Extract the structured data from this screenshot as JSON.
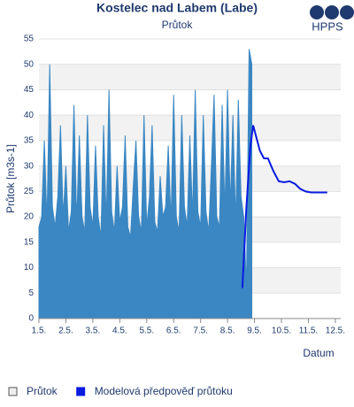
{
  "logo": "HPPS",
  "chart_data": {
    "type": "area-line",
    "title": "Kostelec nad Labem (Labe)",
    "subtitle": "Průtok",
    "y_label": "Průtok [m3s-1]",
    "x_label": "Datum",
    "xlim": [
      1,
      12.2
    ],
    "ylim": [
      0,
      55
    ],
    "xticks": [
      {
        "value": 1,
        "label": "1.5."
      },
      {
        "value": 2,
        "label": "2.5."
      },
      {
        "value": 3,
        "label": "3.5."
      },
      {
        "value": 4,
        "label": "4.5."
      },
      {
        "value": 5,
        "label": "5.5."
      },
      {
        "value": 6,
        "label": "6.5."
      },
      {
        "value": 7,
        "label": "7.5."
      },
      {
        "value": 8,
        "label": "8.5."
      },
      {
        "value": 9,
        "label": "9.5."
      },
      {
        "value": 10,
        "label": "10.5."
      },
      {
        "value": 11,
        "label": "11.5."
      },
      {
        "value": 12,
        "label": "12.5."
      }
    ],
    "yticks": [
      0,
      5,
      10,
      15,
      20,
      25,
      30,
      35,
      40,
      45,
      50,
      55
    ],
    "grid": "bands",
    "legend": "bottom-left",
    "series": [
      {
        "name": "Průtok",
        "kind": "area",
        "color": "#3a87c3",
        "x": [
          1.0,
          1.1,
          1.2,
          1.3,
          1.4,
          1.5,
          1.6,
          1.7,
          1.8,
          1.9,
          2.0,
          2.1,
          2.2,
          2.3,
          2.4,
          2.5,
          2.6,
          2.7,
          2.8,
          2.9,
          3.0,
          3.1,
          3.2,
          3.3,
          3.4,
          3.5,
          3.6,
          3.7,
          3.8,
          3.9,
          4.0,
          4.1,
          4.2,
          4.3,
          4.4,
          4.5,
          4.6,
          4.7,
          4.8,
          4.9,
          5.0,
          5.1,
          5.2,
          5.3,
          5.4,
          5.5,
          5.6,
          5.7,
          5.8,
          5.9,
          6.0,
          6.1,
          6.2,
          6.3,
          6.4,
          6.5,
          6.6,
          6.7,
          6.8,
          6.9,
          7.0,
          7.1,
          7.2,
          7.3,
          7.4,
          7.5,
          7.6,
          7.7,
          7.8,
          7.9,
          8.0,
          8.1,
          8.2,
          8.3,
          8.4,
          8.5,
          8.6,
          8.7,
          8.8,
          8.9
        ],
        "values": [
          18,
          20,
          35,
          19,
          50,
          22,
          18,
          24,
          38,
          20,
          30,
          17,
          21,
          42,
          19,
          36,
          20,
          17,
          40,
          22,
          18,
          34,
          20,
          16,
          38,
          19,
          45,
          21,
          17,
          30,
          19,
          22,
          36,
          18,
          16,
          26,
          35,
          20,
          17,
          40,
          18,
          24,
          38,
          19,
          17,
          28,
          20,
          22,
          34,
          19,
          44,
          20,
          17,
          40,
          22,
          18,
          36,
          20,
          45,
          21,
          18,
          40,
          21,
          17,
          30,
          44,
          20,
          18,
          42,
          21,
          45,
          22,
          40,
          19,
          43,
          24,
          20,
          6,
          53,
          50
        ]
      },
      {
        "name": "Modelová předpověď průtoku",
        "kind": "line",
        "color": "#0a1be0",
        "x": [
          8.55,
          8.7,
          8.85,
          8.95,
          9.05,
          9.2,
          9.35,
          9.5,
          9.7,
          9.9,
          10.1,
          10.3,
          10.5,
          10.7,
          10.9,
          11.1,
          11.4,
          11.7
        ],
        "values": [
          6,
          22,
          34,
          38,
          36,
          33,
          31.5,
          31.5,
          29,
          27,
          26.8,
          27,
          26.5,
          25.5,
          25,
          24.8,
          24.8,
          24.8
        ]
      }
    ]
  }
}
